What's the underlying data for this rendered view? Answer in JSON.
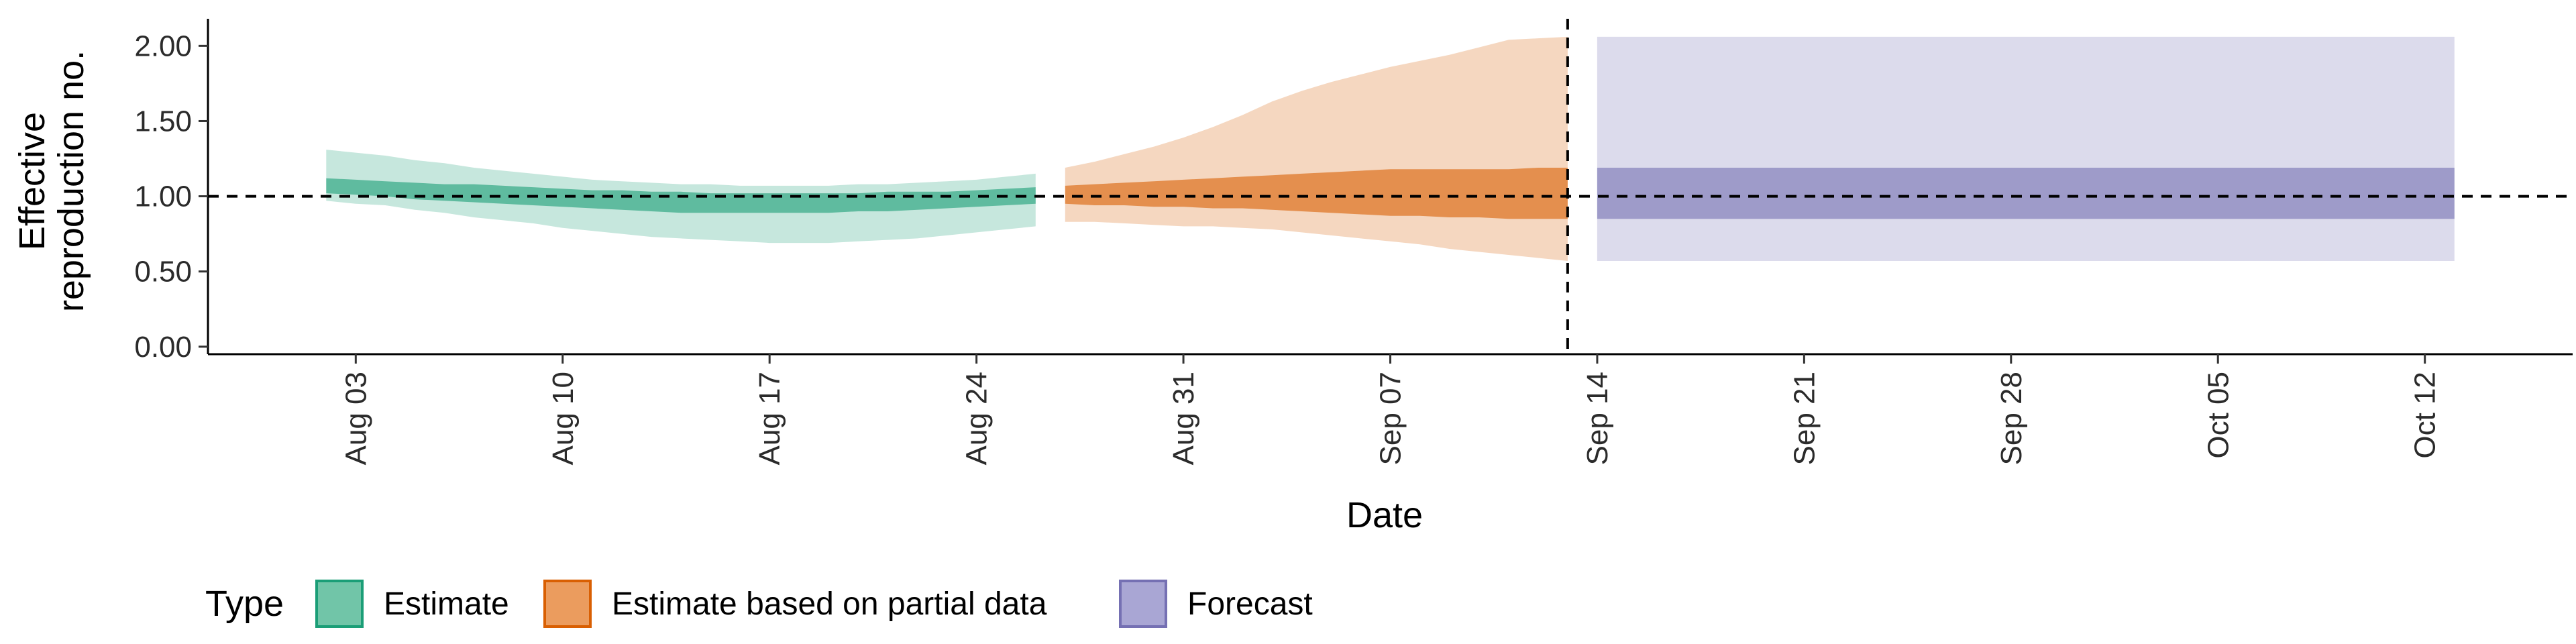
{
  "chart_data": {
    "type": "area",
    "xlabel": "Date",
    "ylabel_lines": [
      "Effective",
      "reproduction no."
    ],
    "ylim": [
      -0.05,
      2.18
    ],
    "xlim": [
      "2021-07-29",
      "2021-10-17"
    ],
    "y_ticks": [
      {
        "value": 0.0,
        "label": "0.00"
      },
      {
        "value": 0.5,
        "label": "0.50"
      },
      {
        "value": 1.0,
        "label": "1.00"
      },
      {
        "value": 1.5,
        "label": "1.50"
      },
      {
        "value": 2.0,
        "label": "2.00"
      }
    ],
    "x_ticks": [
      {
        "date": "2021-08-03",
        "label": "Aug 03"
      },
      {
        "date": "2021-08-10",
        "label": "Aug 10"
      },
      {
        "date": "2021-08-17",
        "label": "Aug 17"
      },
      {
        "date": "2021-08-24",
        "label": "Aug 24"
      },
      {
        "date": "2021-08-31",
        "label": "Aug 31"
      },
      {
        "date": "2021-09-07",
        "label": "Sep 07"
      },
      {
        "date": "2021-09-14",
        "label": "Sep 14"
      },
      {
        "date": "2021-09-21",
        "label": "Sep 21"
      },
      {
        "date": "2021-09-28",
        "label": "Sep 28"
      },
      {
        "date": "2021-10-05",
        "label": "Oct 05"
      },
      {
        "date": "2021-10-12",
        "label": "Oct 12"
      }
    ],
    "reference_hline": 1.0,
    "reference_vline": "2021-09-13",
    "legend": {
      "title": "Type",
      "placement": "bottom",
      "items": [
        {
          "label": "Estimate",
          "fill": "#71c5a8",
          "stroke": "#1b9e77"
        },
        {
          "label": "Estimate based on partial data",
          "fill": "#eb9c5e",
          "stroke": "#d95f02"
        },
        {
          "label": "Forecast",
          "fill": "#a9a6d4",
          "stroke": "#7570b3"
        }
      ]
    },
    "series": [
      {
        "type_index": 0,
        "outer_color": "#1b9e77",
        "inner_color": "#1b9e77",
        "outer_opacity": 0.25,
        "inner_opacity": 0.6,
        "dates": [
          "2021-08-02",
          "2021-08-03",
          "2021-08-04",
          "2021-08-05",
          "2021-08-06",
          "2021-08-07",
          "2021-08-08",
          "2021-08-09",
          "2021-08-10",
          "2021-08-11",
          "2021-08-12",
          "2021-08-13",
          "2021-08-14",
          "2021-08-15",
          "2021-08-16",
          "2021-08-17",
          "2021-08-18",
          "2021-08-19",
          "2021-08-20",
          "2021-08-21",
          "2021-08-22",
          "2021-08-23",
          "2021-08-24",
          "2021-08-25",
          "2021-08-26"
        ],
        "outer_lower": [
          0.97,
          0.95,
          0.94,
          0.91,
          0.89,
          0.86,
          0.84,
          0.82,
          0.79,
          0.77,
          0.75,
          0.73,
          0.72,
          0.71,
          0.7,
          0.69,
          0.69,
          0.69,
          0.7,
          0.71,
          0.72,
          0.74,
          0.76,
          0.78,
          0.8
        ],
        "outer_upper": [
          1.31,
          1.29,
          1.27,
          1.24,
          1.22,
          1.19,
          1.17,
          1.15,
          1.13,
          1.11,
          1.1,
          1.09,
          1.08,
          1.08,
          1.07,
          1.07,
          1.07,
          1.07,
          1.08,
          1.08,
          1.09,
          1.1,
          1.11,
          1.13,
          1.15
        ],
        "inner_lower": [
          1.02,
          1.01,
          1.0,
          0.98,
          0.97,
          0.96,
          0.95,
          0.94,
          0.93,
          0.92,
          0.91,
          0.9,
          0.89,
          0.89,
          0.89,
          0.89,
          0.89,
          0.89,
          0.9,
          0.9,
          0.91,
          0.92,
          0.93,
          0.94,
          0.95
        ],
        "inner_upper": [
          1.12,
          1.11,
          1.1,
          1.09,
          1.08,
          1.08,
          1.07,
          1.06,
          1.05,
          1.04,
          1.04,
          1.03,
          1.03,
          1.02,
          1.02,
          1.02,
          1.02,
          1.02,
          1.02,
          1.03,
          1.03,
          1.03,
          1.04,
          1.05,
          1.06
        ]
      },
      {
        "type_index": 1,
        "outer_color": "#d95f02",
        "inner_color": "#d95f02",
        "outer_opacity": 0.25,
        "inner_opacity": 0.6,
        "dates": [
          "2021-08-27",
          "2021-08-28",
          "2021-08-29",
          "2021-08-30",
          "2021-08-31",
          "2021-09-01",
          "2021-09-02",
          "2021-09-03",
          "2021-09-04",
          "2021-09-05",
          "2021-09-06",
          "2021-09-07",
          "2021-09-08",
          "2021-09-09",
          "2021-09-10",
          "2021-09-11",
          "2021-09-12",
          "2021-09-13"
        ],
        "outer_lower": [
          0.83,
          0.83,
          0.82,
          0.81,
          0.8,
          0.8,
          0.79,
          0.78,
          0.76,
          0.74,
          0.72,
          0.7,
          0.68,
          0.65,
          0.63,
          0.61,
          0.59,
          0.57
        ],
        "outer_upper": [
          1.19,
          1.23,
          1.28,
          1.33,
          1.39,
          1.46,
          1.54,
          1.63,
          1.7,
          1.76,
          1.81,
          1.86,
          1.9,
          1.94,
          1.99,
          2.04,
          2.05,
          2.06
        ],
        "inner_lower": [
          0.95,
          0.94,
          0.94,
          0.93,
          0.93,
          0.92,
          0.92,
          0.91,
          0.9,
          0.89,
          0.88,
          0.87,
          0.87,
          0.86,
          0.86,
          0.85,
          0.85,
          0.85
        ],
        "inner_upper": [
          1.07,
          1.08,
          1.09,
          1.1,
          1.11,
          1.12,
          1.13,
          1.14,
          1.15,
          1.16,
          1.17,
          1.18,
          1.18,
          1.18,
          1.18,
          1.18,
          1.19,
          1.19
        ]
      },
      {
        "type_index": 2,
        "outer_color": "#7570b3",
        "inner_color": "#7570b3",
        "outer_opacity": 0.25,
        "inner_opacity": 0.6,
        "dates": [
          "2021-09-14",
          "2021-10-13"
        ],
        "outer_lower": [
          0.57,
          0.57
        ],
        "outer_upper": [
          2.06,
          2.06
        ],
        "inner_lower": [
          0.85,
          0.85
        ],
        "inner_upper": [
          1.19,
          1.19
        ]
      }
    ]
  }
}
